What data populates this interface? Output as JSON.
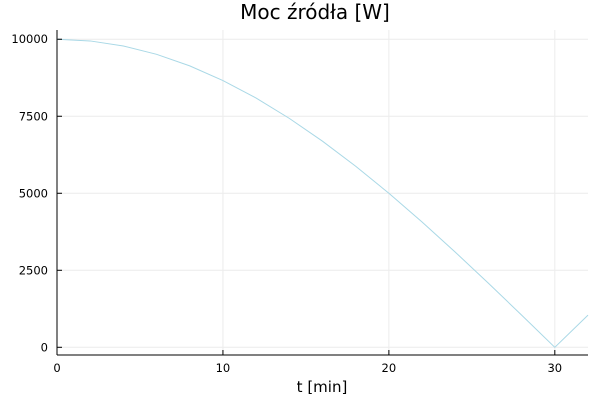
{
  "chart_data": {
    "type": "line",
    "title": "Moc źródła [W]",
    "xlabel": "t [min]",
    "ylabel": "",
    "xlim": [
      0,
      32
    ],
    "ylim": [
      -250,
      10300
    ],
    "x_ticks": [
      0,
      10,
      20,
      30
    ],
    "y_ticks": [
      0,
      2500,
      5000,
      7500,
      10000
    ],
    "x_tick_labels": [
      "0",
      "10",
      "20",
      "30"
    ],
    "y_tick_labels": [
      "0",
      "2500",
      "5000",
      "7500",
      "10000"
    ],
    "grid": true,
    "legend": "none",
    "series": [
      {
        "color": "#a9d8e6",
        "x": [
          0,
          2,
          4,
          6,
          8,
          10,
          12,
          14,
          16,
          18,
          20,
          22,
          24,
          26,
          28,
          30,
          32
        ],
        "y": [
          10000,
          9945,
          9781,
          9511,
          9135,
          8660,
          8090,
          7431,
          6691,
          5878,
          5000,
          4067,
          3090,
          2079,
          1045,
          0,
          1045
        ]
      }
    ]
  }
}
